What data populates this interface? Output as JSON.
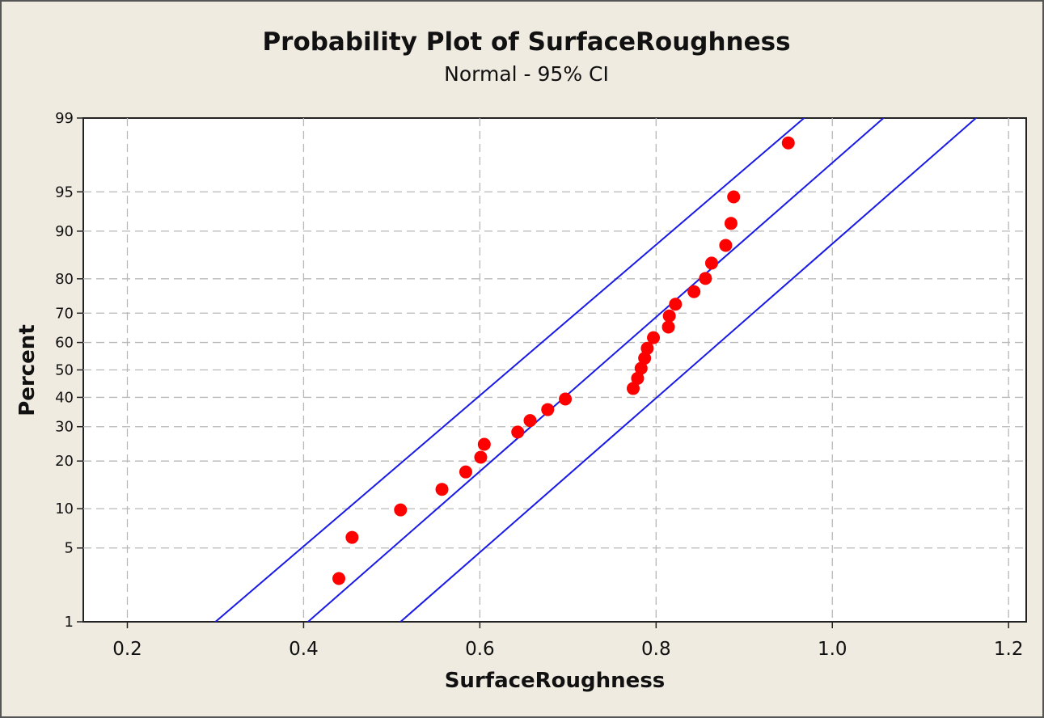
{
  "chart_data": {
    "type": "scatter",
    "title": "Probability Plot of SurfaceRoughness",
    "subtitle": "Normal - 95% CI",
    "xlabel": "SurfaceRoughness",
    "ylabel": "Percent",
    "xlim": [
      0.15,
      1.22
    ],
    "ylim": [
      1,
      99
    ],
    "y_scale": "normal-probability",
    "grid": true,
    "x_ticks": [
      0.2,
      0.4,
      0.6,
      0.8,
      1.0,
      1.2
    ],
    "x_tick_labels": [
      "0.2",
      "0.4",
      "0.6",
      "0.8",
      "1.0",
      "1.2"
    ],
    "y_ticks": [
      1,
      5,
      10,
      20,
      30,
      40,
      50,
      60,
      70,
      80,
      90,
      95,
      99
    ],
    "y_tick_labels": [
      "1",
      "5",
      "10",
      "20",
      "30",
      "40",
      "50",
      "60",
      "70",
      "80",
      "90",
      "95",
      "99"
    ],
    "fit_line": {
      "name": "Fit",
      "x_at_p1": 0.405,
      "x_at_p99": 1.058,
      "color": "#1a1ae6"
    },
    "ci_lower": {
      "name": "95% CI (left band)",
      "x_at_p1": 0.3,
      "x_at_p99": 0.968,
      "color": "#1a1ae6"
    },
    "ci_upper": {
      "name": "95% CI (right band)",
      "x_at_p1": 0.51,
      "x_at_p99": 1.163,
      "color": "#1a1ae6"
    },
    "series": [
      {
        "name": "SurfaceRoughness",
        "color": "#ff0000",
        "points": [
          {
            "x": 0.44,
            "y": 2.7
          },
          {
            "x": 0.455,
            "y": 6.1
          },
          {
            "x": 0.51,
            "y": 9.8
          },
          {
            "x": 0.557,
            "y": 13.5
          },
          {
            "x": 0.584,
            "y": 17.3
          },
          {
            "x": 0.601,
            "y": 21.0
          },
          {
            "x": 0.605,
            "y": 24.6
          },
          {
            "x": 0.643,
            "y": 28.3
          },
          {
            "x": 0.657,
            "y": 32.0
          },
          {
            "x": 0.677,
            "y": 35.7
          },
          {
            "x": 0.697,
            "y": 39.4
          },
          {
            "x": 0.774,
            "y": 43.2
          },
          {
            "x": 0.779,
            "y": 46.9
          },
          {
            "x": 0.783,
            "y": 50.6
          },
          {
            "x": 0.787,
            "y": 54.3
          },
          {
            "x": 0.79,
            "y": 57.9
          },
          {
            "x": 0.797,
            "y": 61.7
          },
          {
            "x": 0.814,
            "y": 65.4
          },
          {
            "x": 0.815,
            "y": 69.1
          },
          {
            "x": 0.822,
            "y": 72.8
          },
          {
            "x": 0.843,
            "y": 76.5
          },
          {
            "x": 0.856,
            "y": 80.1
          },
          {
            "x": 0.863,
            "y": 83.8
          },
          {
            "x": 0.879,
            "y": 87.5
          },
          {
            "x": 0.885,
            "y": 91.2
          },
          {
            "x": 0.888,
            "y": 94.5
          },
          {
            "x": 0.95,
            "y": 98.2
          }
        ]
      }
    ]
  }
}
